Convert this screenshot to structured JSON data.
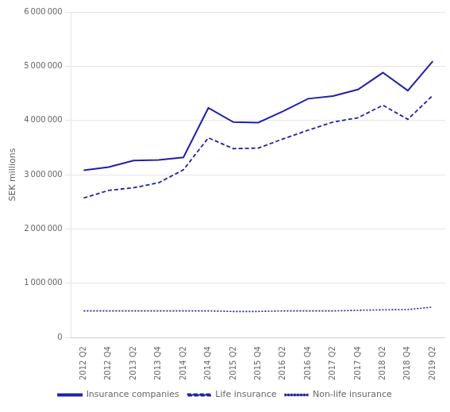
{
  "chart_data": {
    "type": "line",
    "ylabel": "SEK millions",
    "categories": [
      "2012 Q2",
      "2012 Q4",
      "2013 Q2",
      "2013 Q4",
      "2014 Q2",
      "2014 Q4",
      "2015 Q2",
      "2015 Q4",
      "2016 Q2",
      "2016 Q4",
      "2017 Q2",
      "2017 Q4",
      "2018 Q2",
      "2018 Q4",
      "2019 Q2"
    ],
    "series": [
      {
        "name": "Insurance companies",
        "color": "#2020aa",
        "line_style": "solid",
        "values": [
          3080000,
          3140000,
          3260000,
          3270000,
          3320000,
          4230000,
          3970000,
          3960000,
          4170000,
          4400000,
          4450000,
          4570000,
          4880000,
          4550000,
          5090000
        ]
      },
      {
        "name": "Life insurance",
        "color": "#2020aa",
        "line_style": "dashed",
        "values": [
          2570000,
          2710000,
          2760000,
          2850000,
          3090000,
          3680000,
          3480000,
          3490000,
          3660000,
          3820000,
          3970000,
          4050000,
          4280000,
          4020000,
          4460000
        ]
      },
      {
        "name": "Non-life insurance",
        "color": "#2020aa",
        "line_style": "dotted",
        "values": [
          490000,
          490000,
          490000,
          490000,
          490000,
          490000,
          480000,
          480000,
          490000,
          490000,
          490000,
          500000,
          510000,
          515000,
          560000
        ]
      }
    ],
    "ylim": [
      0,
      6000000
    ],
    "yticks": [
      0,
      {
        "value": 1000000,
        "label": "1 000 000"
      },
      {
        "value": 2000000,
        "label": "2 000 000"
      },
      {
        "value": 3000000,
        "label": "3 000 000"
      },
      {
        "value": 4000000,
        "label": "4 000 000"
      },
      {
        "value": 5000000,
        "label": "5 000 000"
      },
      {
        "value": 6000000,
        "label": "6 000 000"
      }
    ],
    "grid": "y",
    "legend": "bottom"
  }
}
